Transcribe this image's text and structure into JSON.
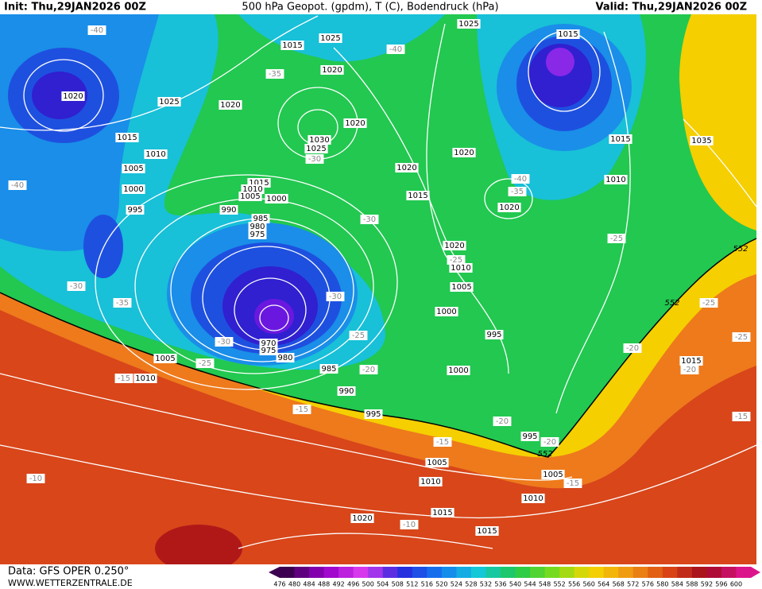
{
  "header": {
    "init": "Init: Thu,29JAN2026 00Z",
    "title": "500 hPa Geopot. (gpdm), T (C), Bodendruck (hPa)",
    "valid": "Valid: Thu,29JAN2026 00Z"
  },
  "footer": {
    "data": "Data: GFS OPER 0.250°",
    "site": "WWW.WETTERZENTRALE.DE"
  },
  "legend": {
    "labels": [
      "476",
      "480",
      "484",
      "488",
      "492",
      "496",
      "500",
      "504",
      "508",
      "512",
      "516",
      "520",
      "524",
      "528",
      "532",
      "536",
      "540",
      "544",
      "548",
      "552",
      "556",
      "560",
      "564",
      "568",
      "572",
      "576",
      "580",
      "584",
      "588",
      "592",
      "596",
      "600"
    ]
  },
  "pressure_labels": [
    "1025",
    "1015",
    "1025",
    "1015",
    "1020",
    "1020",
    "1025",
    "1020",
    "1020",
    "1030",
    "1025",
    "1015",
    "1010",
    "1020",
    "1015",
    "1035",
    "1005",
    "1020",
    "1015",
    "1010",
    "1005",
    "1000",
    "1000",
    "1015",
    "1010",
    "1020",
    "995",
    "990",
    "985",
    "980",
    "975",
    "1020",
    "1010",
    "1005",
    "1000",
    "995",
    "970",
    "975",
    "980",
    "985",
    "1005",
    "1010",
    "1000",
    "990",
    "995",
    "995",
    "1005",
    "1005",
    "1010",
    "1010",
    "1015",
    "1020",
    "1015",
    "1015"
  ],
  "temperature_labels": [
    "-40",
    "-40",
    "-35",
    "-30",
    "-40",
    "-40",
    "-35",
    "-30",
    "-25",
    "-25",
    "-30",
    "-35",
    "-30",
    "-30",
    "-25",
    "-25",
    "-20",
    "-20",
    "-25",
    "-25",
    "-20",
    "-15",
    "-15",
    "-15",
    "-20",
    "-20",
    "-15",
    "-10",
    "-10",
    "-15"
  ],
  "geopotential_labels": [
    "552",
    "552",
    "552"
  ]
}
